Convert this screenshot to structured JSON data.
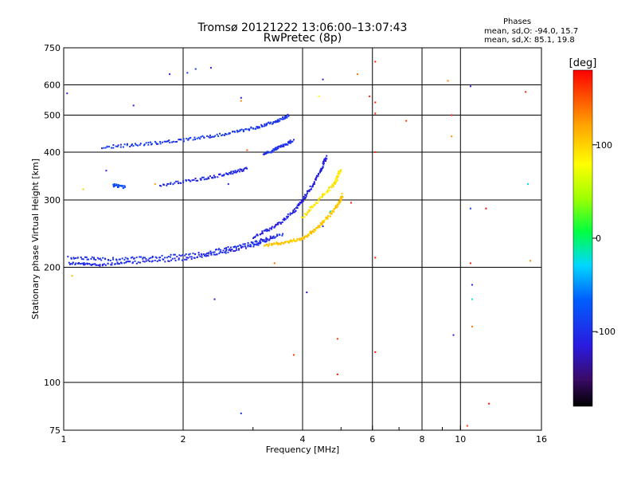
{
  "header": {
    "title": "Tromsø 20121222 13:06:00–13:07:43",
    "subtitle": "RwPretec (8p)",
    "phases_heading": "Phases",
    "phases_o": "mean, sd,O: -94.0, 15.7",
    "phases_x": "mean, sd,X:  85.1, 19.8"
  },
  "chart_data": {
    "type": "scatter",
    "title": "Tromsø 20121222 13:06:00–13:07:43",
    "subtitle": "RwPretec (8p)",
    "xlabel": "Frequency [MHz]",
    "ylabel": "Stationary phase Virtual Height [km]",
    "xscale": "log",
    "yscale": "log",
    "xlim": [
      1,
      16
    ],
    "ylim": [
      75,
      750
    ],
    "xticks": [
      1,
      2,
      4,
      6,
      8,
      10,
      16
    ],
    "xtick_labels": [
      "1",
      "2",
      "4",
      "6",
      "8",
      "10",
      "16"
    ],
    "yticks": [
      75,
      100,
      200,
      300,
      400,
      500,
      600,
      750
    ],
    "ytick_labels": [
      "75",
      "100",
      "200",
      "300",
      "400",
      "500",
      "600",
      "750"
    ],
    "grid": true,
    "colorbar": {
      "label": "[deg]",
      "range": [
        -180,
        180
      ],
      "ticks": [
        -100,
        0,
        100
      ],
      "tick_labels": [
        "-100",
        "0",
        "100"
      ]
    },
    "traces": [
      {
        "x": [
          1.03,
          1.2,
          1.5,
          2.0,
          2.5,
          3.0,
          3.4
        ],
        "y": [
          205,
          203,
          206,
          210,
          218,
          228,
          240
        ],
        "phase": -105
      },
      {
        "x": [
          1.03,
          1.3,
          1.7,
          2.3,
          2.9,
          3.6
        ],
        "y": [
          212,
          210,
          212,
          218,
          230,
          245
        ],
        "phase": -100
      },
      {
        "x": [
          3.2,
          3.6,
          4.0,
          4.3,
          4.6,
          4.9,
          5.05
        ],
        "y": [
          228,
          232,
          238,
          250,
          268,
          290,
          310
        ],
        "phase": 105
      },
      {
        "x": [
          4.0,
          4.4,
          4.8,
          5.0
        ],
        "y": [
          270,
          300,
          330,
          360
        ],
        "phase": 90
      },
      {
        "x": [
          3.0,
          3.4,
          3.8,
          4.1,
          4.4,
          4.6
        ],
        "y": [
          240,
          255,
          280,
          310,
          350,
          390
        ],
        "phase": -110
      },
      {
        "x": [
          1.25,
          1.6,
          2.0,
          2.5,
          3.0,
          3.4,
          3.7
        ],
        "y": [
          412,
          420,
          430,
          445,
          462,
          480,
          500
        ],
        "phase": -95
      },
      {
        "x": [
          1.75,
          2.2,
          2.6,
          2.9
        ],
        "y": [
          328,
          340,
          352,
          362
        ],
        "phase": -105
      },
      {
        "x": [
          3.2,
          3.5,
          3.8
        ],
        "y": [
          395,
          412,
          430
        ],
        "phase": -100
      },
      {
        "x": [
          1.33,
          1.43
        ],
        "y": [
          328,
          324
        ],
        "phase": -80
      }
    ],
    "outliers": [
      {
        "x": 1.02,
        "y": 570,
        "phase": -110
      },
      {
        "x": 1.05,
        "y": 190,
        "phase": 110
      },
      {
        "x": 1.12,
        "y": 320,
        "phase": 100
      },
      {
        "x": 1.28,
        "y": 358,
        "phase": -110
      },
      {
        "x": 1.5,
        "y": 530,
        "phase": -110
      },
      {
        "x": 1.7,
        "y": 330,
        "phase": 120
      },
      {
        "x": 1.85,
        "y": 640,
        "phase": -110
      },
      {
        "x": 2.05,
        "y": 645,
        "phase": -90
      },
      {
        "x": 2.15,
        "y": 660,
        "phase": -90
      },
      {
        "x": 2.35,
        "y": 665,
        "phase": -120
      },
      {
        "x": 2.6,
        "y": 330,
        "phase": -110
      },
      {
        "x": 2.8,
        "y": 555,
        "phase": -120
      },
      {
        "x": 2.8,
        "y": 545,
        "phase": 130
      },
      {
        "x": 2.9,
        "y": 405,
        "phase": 150
      },
      {
        "x": 2.4,
        "y": 165,
        "phase": -120
      },
      {
        "x": 2.8,
        "y": 83,
        "phase": -100
      },
      {
        "x": 3.4,
        "y": 205,
        "phase": 140
      },
      {
        "x": 3.8,
        "y": 118,
        "phase": 160
      },
      {
        "x": 4.1,
        "y": 172,
        "phase": -120
      },
      {
        "x": 4.5,
        "y": 256,
        "phase": -110
      },
      {
        "x": 4.9,
        "y": 130,
        "phase": 160
      },
      {
        "x": 4.9,
        "y": 105,
        "phase": 170
      },
      {
        "x": 5.5,
        "y": 640,
        "phase": 140
      },
      {
        "x": 5.9,
        "y": 560,
        "phase": 170
      },
      {
        "x": 6.1,
        "y": 690,
        "phase": 170
      },
      {
        "x": 6.1,
        "y": 540,
        "phase": 170
      },
      {
        "x": 6.1,
        "y": 505,
        "phase": 170
      },
      {
        "x": 6.1,
        "y": 400,
        "phase": 165
      },
      {
        "x": 6.1,
        "y": 212,
        "phase": 170
      },
      {
        "x": 6.1,
        "y": 120,
        "phase": 170
      },
      {
        "x": 7.3,
        "y": 483,
        "phase": 160
      },
      {
        "x": 9.3,
        "y": 615,
        "phase": 130
      },
      {
        "x": 9.5,
        "y": 500,
        "phase": 170
      },
      {
        "x": 9.5,
        "y": 440,
        "phase": 130
      },
      {
        "x": 9.6,
        "y": 133,
        "phase": -110
      },
      {
        "x": 10.4,
        "y": 77,
        "phase": 160
      },
      {
        "x": 10.6,
        "y": 595,
        "phase": -120
      },
      {
        "x": 10.6,
        "y": 285,
        "phase": -80
      },
      {
        "x": 10.6,
        "y": 205,
        "phase": 170
      },
      {
        "x": 10.7,
        "y": 180,
        "phase": -110
      },
      {
        "x": 10.7,
        "y": 165,
        "phase": -20
      },
      {
        "x": 10.7,
        "y": 140,
        "phase": 140
      },
      {
        "x": 11.6,
        "y": 285,
        "phase": 180
      },
      {
        "x": 11.8,
        "y": 88,
        "phase": 175
      },
      {
        "x": 14.6,
        "y": 575,
        "phase": 170
      },
      {
        "x": 14.8,
        "y": 330,
        "phase": -30
      },
      {
        "x": 15.0,
        "y": 208,
        "phase": 130
      },
      {
        "x": 4.5,
        "y": 620,
        "phase": -120
      },
      {
        "x": 4.4,
        "y": 560,
        "phase": 80
      },
      {
        "x": 5.3,
        "y": 295,
        "phase": 170
      },
      {
        "x": 4.7,
        "y": 280,
        "phase": -10
      }
    ]
  }
}
